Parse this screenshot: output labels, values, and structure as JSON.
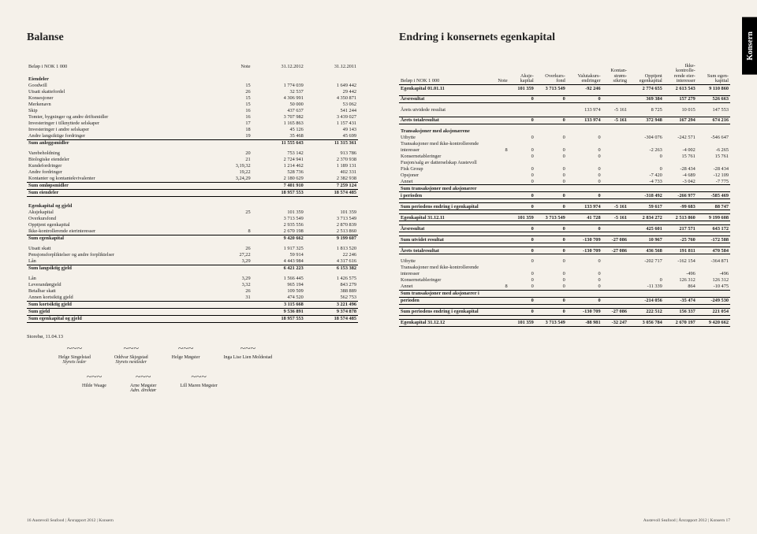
{
  "tab": "Konsern",
  "left": {
    "title": "Balanse",
    "sub_label": "Beløp i NOK 1 000",
    "col_note": "Note",
    "col_y1": "31.12.2012",
    "col_y2": "31.12.2011",
    "sections": {
      "eiendeler": "Eiendeler",
      "ek_gjeld": "Egenkapital og gjeld"
    },
    "rows": [
      {
        "l": "Goodwill",
        "n": "15",
        "a": "1 774 039",
        "b": "1 649 442"
      },
      {
        "l": "Utsatt skattefordel",
        "n": "26",
        "a": "32 537",
        "b": "29 442"
      },
      {
        "l": "Konsesjoner",
        "n": "15",
        "a": "4 306 991",
        "b": "4 350 871"
      },
      {
        "l": "Merkenavn",
        "n": "15",
        "a": "50 000",
        "b": "53 062"
      },
      {
        "l": "Skip",
        "n": "16",
        "a": "437 637",
        "b": "541 244"
      },
      {
        "l": "Tomter, bygninger og andre driftsmidler",
        "n": "16",
        "a": "3 707 982",
        "b": "3 439 027"
      },
      {
        "l": "Investeringer i tilknyttede selskaper",
        "n": "17",
        "a": "1 165 863",
        "b": "1 157 431"
      },
      {
        "l": "Investeringer i andre selskaper",
        "n": "18",
        "a": "45 126",
        "b": "49 143"
      },
      {
        "l": "Andre langsiktige fordringer",
        "n": "19",
        "a": "35 468",
        "b": "45 699"
      }
    ],
    "sum_anl": {
      "l": "Sum anleggsmidler",
      "a": "11 555 643",
      "b": "11 315 361"
    },
    "rows2": [
      {
        "l": "Varebeholdning",
        "n": "20",
        "a": "753 142",
        "b": "913 786"
      },
      {
        "l": "Biologiske eiendeler",
        "n": "21",
        "a": "2 724 941",
        "b": "2 370 938"
      },
      {
        "l": "Kundefordringer",
        "n": "3,19,32",
        "a": "1 214 462",
        "b": "1 189 131"
      },
      {
        "l": "Andre fordringer",
        "n": "19,22",
        "a": "528 736",
        "b": "402 331"
      },
      {
        "l": "Kontanter og kontantekvivalenter",
        "n": "3,24,29",
        "a": "2 180 629",
        "b": "2 382 938"
      }
    ],
    "sum_oml": {
      "l": "Sum omløpsmidler",
      "a": "7 401 910",
      "b": "7 259 124"
    },
    "sum_eien": {
      "l": "Sum eiendeler",
      "a": "18 957 553",
      "b": "18 574 485"
    },
    "rows3": [
      {
        "l": "Aksjekapital",
        "n": "25",
        "a": "101 359",
        "b": "101 359"
      },
      {
        "l": "Overkursfond",
        "n": "",
        "a": "3 713 549",
        "b": "3 713 549"
      },
      {
        "l": "Opptjent egenkapital",
        "n": "",
        "a": "2 935 556",
        "b": "2 870 839"
      },
      {
        "l": "Ikke-kontrollerende eierinteresser",
        "n": "8",
        "a": "2 670 198",
        "b": "2 513 860"
      }
    ],
    "sum_ek": {
      "l": "Sum egenkapital",
      "a": "9 420 662",
      "b": "9 199 607"
    },
    "rows4": [
      {
        "l": "Utsatt skatt",
        "n": "26",
        "a": "1 917 325",
        "b": "1 813 520"
      },
      {
        "l": "Pensjonsforpliktelser og andre forpliktelser",
        "n": "27,22",
        "a": "59 914",
        "b": "22 246"
      },
      {
        "l": "Lån",
        "n": "3,29",
        "a": "4 443 984",
        "b": "4 317 616"
      }
    ],
    "sum_lg": {
      "l": "Sum langsiktig gjeld",
      "a": "6 421 223",
      "b": "6 153 382"
    },
    "rows5": [
      {
        "l": "Lån",
        "n": "3,29",
        "a": "1 566 445",
        "b": "1 426 575"
      },
      {
        "l": "Leverandørgjeld",
        "n": "3,32",
        "a": "965 194",
        "b": "843 279"
      },
      {
        "l": "Betalbar skatt",
        "n": "26",
        "a": "109 509",
        "b": "388 889"
      },
      {
        "l": "Annen kortsiktig gjeld",
        "n": "31",
        "a": "474 520",
        "b": "562 753"
      }
    ],
    "sum_kg": {
      "l": "Sum kortsiktig gjeld",
      "a": "3 115 668",
      "b": "3 221 496"
    },
    "sum_gj": {
      "l": "Sum gjeld",
      "a": "9 536 891",
      "b": "9 374 878"
    },
    "sum_ekg": {
      "l": "Sum egenkapital og gjeld",
      "a": "18 957 553",
      "b": "18 574 485"
    },
    "place_date": "Storebø, 11.04.13",
    "sigs": [
      {
        "n": "Helge Singelstad",
        "r": "Styrets leder"
      },
      {
        "n": "Oddvar Skjegstad",
        "r": "Styrets nestleder"
      },
      {
        "n": "Helge Møgster",
        "r": ""
      },
      {
        "n": "Inga Lise Lien Moldestad",
        "r": ""
      }
    ],
    "sigs2": [
      {
        "n": "Hilde Waage",
        "r": ""
      },
      {
        "n": "Arne Møgster",
        "r": "Adm. direktør"
      },
      {
        "n": "Lill Maren Møgster",
        "r": ""
      }
    ],
    "footer": "16   Austevoll Seafood | Årsrapport 2012 | Konsern"
  },
  "right": {
    "title": "Endring i konsernets egenkapital",
    "sub_label": "Beløp i NOK 1 000",
    "cols": [
      "Note",
      "Aksje-\nkapital",
      "Overkurs-\nfond",
      "Valutakurs-\nendringer",
      "Kontan-\nstrøm-\nsikring",
      "Opptjent\negenkapital",
      "Ikke-\nkontrolle-\nrende eier-\ninteresser",
      "Sum egen-\nkapital"
    ],
    "rows": [
      {
        "b": true,
        "l": "Egenkapital 01.01.11",
        "v": [
          "",
          "101 359",
          "3 713 549",
          "-92 246",
          "",
          "2 774 655",
          "2 613 543",
          "9 110 860"
        ]
      },
      {
        "sp": true
      },
      {
        "bb": true,
        "l": "Årsresultat",
        "v": [
          "",
          "0",
          "0",
          "0",
          "",
          "369 384",
          "157 279",
          "526 663"
        ]
      },
      {
        "sp": true
      },
      {
        "l": "Årets utvidede resultat",
        "v": [
          "",
          "",
          "",
          "133 974",
          "-5 161",
          "8 725",
          "10 015",
          "147 553"
        ]
      },
      {
        "sp": true
      },
      {
        "bb": true,
        "l": "Årets totalresultat",
        "v": [
          "",
          "0",
          "0",
          "133 974",
          "-5 161",
          "372 948",
          "167 294",
          "674 216"
        ]
      },
      {
        "sp": true
      },
      {
        "sec": true,
        "l": "Transaksjoner med aksjonærene"
      },
      {
        "l": "Utbytte",
        "v": [
          "",
          "0",
          "0",
          "0",
          "",
          "-304 076",
          "-242 571",
          "-546 647"
        ]
      },
      {
        "l": "Transaksjoner med ikke-kontrollerende"
      },
      {
        "l": "interesser",
        "v": [
          "8",
          "0",
          "0",
          "0",
          "",
          "-2 263",
          "-4 002",
          "-6 265"
        ]
      },
      {
        "l": "Konsernetableringer",
        "v": [
          "",
          "0",
          "0",
          "0",
          "",
          "0",
          "15 761",
          "15 761"
        ]
      },
      {
        "l": "Fusjon/salg av datterselskap Austevoll"
      },
      {
        "l": "Fisk Group",
        "v": [
          "",
          "0",
          "0",
          "0",
          "",
          "0",
          "-28 434",
          "-28 434"
        ]
      },
      {
        "l": "Opsjoner",
        "v": [
          "",
          "0",
          "0",
          "0",
          "",
          "-7 420",
          "-4 689",
          "-12 109"
        ]
      },
      {
        "l": "Annet",
        "v": [
          "",
          "0",
          "0",
          "0",
          "",
          "-4 733",
          "-3 042",
          "-7 775"
        ]
      },
      {
        "b": true,
        "l": "Sum transaksjoner med aksjonærer"
      },
      {
        "bb": true,
        "l": "i perioden",
        "v": [
          "",
          "0",
          "0",
          "0",
          "",
          "-318 492",
          "-266 977",
          "-585 469"
        ]
      },
      {
        "sp": true
      },
      {
        "bb": true,
        "l": "Sum periodens endring i egenkapital",
        "v": [
          "",
          "0",
          "0",
          "133 974",
          "-5 161",
          "59 617",
          "-99 683",
          "88 747"
        ]
      },
      {
        "sp": true
      },
      {
        "bb": true,
        "l": "Egenkapital 31.12.11",
        "v": [
          "",
          "101 359",
          "3 713 549",
          "41 728",
          "-5 161",
          "2 834 272",
          "2 513 860",
          "9 199 608"
        ]
      },
      {
        "sp": true
      },
      {
        "bb": true,
        "l": "Årsresultat",
        "v": [
          "",
          "0",
          "0",
          "0",
          "",
          "425 601",
          "217 571",
          "643 172"
        ]
      },
      {
        "sp": true
      },
      {
        "bb": true,
        "l": "Sum utvidet resultat",
        "v": [
          "",
          "0",
          "0",
          "-130 709",
          "-27 086",
          "10 967",
          "-25 760",
          "-172 588"
        ]
      },
      {
        "sp": true
      },
      {
        "bb": true,
        "l": "Årets totalresultat",
        "v": [
          "",
          "0",
          "0",
          "-130 709",
          "-27 086",
          "436 568",
          "191 811",
          "470 584"
        ]
      },
      {
        "sp": true
      },
      {
        "l": "Utbytte",
        "v": [
          "",
          "0",
          "0",
          "0",
          "",
          "-202 717",
          "-162 154",
          "-364 871"
        ]
      },
      {
        "l": "Transaksjoner med ikke-kontrollerende"
      },
      {
        "l": "interesser",
        "v": [
          "",
          "0",
          "0",
          "0",
          "",
          "",
          "-496",
          "-496"
        ]
      },
      {
        "l": "Konsernetableringer",
        "v": [
          "",
          "0",
          "0",
          "0",
          "",
          "0",
          "126 312",
          "126 312"
        ]
      },
      {
        "l": "Annet",
        "v": [
          "8",
          "0",
          "0",
          "0",
          "",
          "-11 339",
          "864",
          "-10 475"
        ]
      },
      {
        "b": true,
        "l": "Sum transaksjoner med aksjonærer i"
      },
      {
        "bb": true,
        "l": "perioden",
        "v": [
          "",
          "0",
          "0",
          "0",
          "",
          "-214 056",
          "-35 474",
          "-249 530"
        ]
      },
      {
        "sp": true
      },
      {
        "bb": true,
        "l": "Sum periodens endring i egenkapital",
        "v": [
          "",
          "0",
          "0",
          "-130 709",
          "-27 086",
          "222 512",
          "156 337",
          "221 054"
        ]
      },
      {
        "sp": true
      },
      {
        "bb": true,
        "l": "Egenkapital 31.12.12",
        "v": [
          "",
          "101 359",
          "3 713 549",
          "-88 981",
          "-32 247",
          "3 056 784",
          "2 670 197",
          "9 420 662"
        ]
      }
    ],
    "footer": "Austevoll Seafood | Årsrapport 2012 | Konsern   17"
  }
}
